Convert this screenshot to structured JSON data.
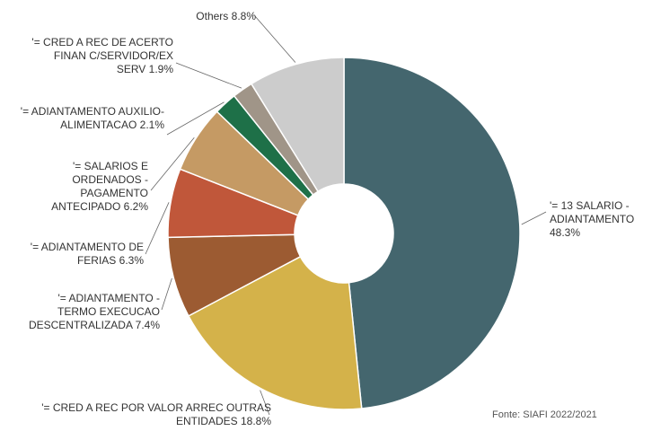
{
  "chart_data": {
    "type": "donut",
    "categories": [
      "'= 13 SALARIO - ADIANTAMENTO",
      "'= CRED A REC POR VALOR ARREC OUTRAS ENTIDADES",
      "'= ADIANTAMENTO - TERMO EXECUCAO DESCENTRALIZADA",
      "'= ADIANTAMENTO DE FERIAS",
      "'= SALARIOS E ORDENADOS - PAGAMENTO ANTECIPADO",
      "'= ADIANTAMENTO AUXILIO-ALIMENTACAO",
      "'= CRED A REC DE ACERTO FINAN C/SERVIDOR/EX SERV",
      "Others"
    ],
    "values": [
      48.3,
      18.8,
      7.4,
      6.3,
      6.2,
      2.1,
      1.9,
      8.8
    ],
    "value_labels": [
      "48.3%",
      "18.8%",
      "7.4%",
      "6.3%",
      "6.2%",
      "2.1%",
      "1.9%",
      "8.8%"
    ],
    "colors": [
      "#44666e",
      "#d4b24a",
      "#9c5b32",
      "#c0573a",
      "#c59a64",
      "#1e7048",
      "#a09588",
      "#cccccc"
    ],
    "source": "Fonte: SIAFI 2022/2021"
  }
}
